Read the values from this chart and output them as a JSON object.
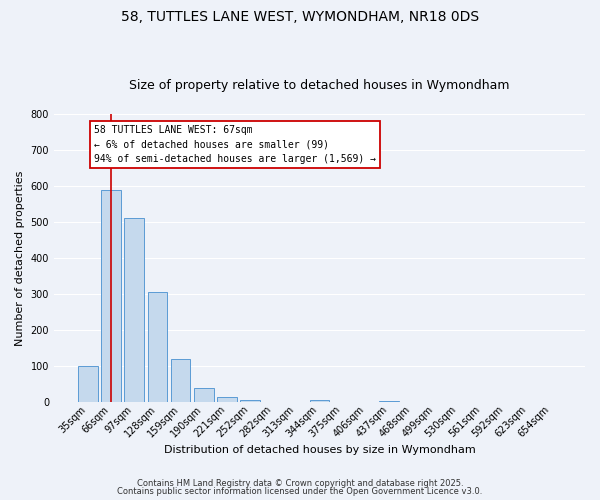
{
  "title": "58, TUTTLES LANE WEST, WYMONDHAM, NR18 0DS",
  "subtitle": "Size of property relative to detached houses in Wymondham",
  "xlabel": "Distribution of detached houses by size in Wymondham",
  "ylabel": "Number of detached properties",
  "bar_labels": [
    "35sqm",
    "66sqm",
    "97sqm",
    "128sqm",
    "159sqm",
    "190sqm",
    "221sqm",
    "252sqm",
    "282sqm",
    "313sqm",
    "344sqm",
    "375sqm",
    "406sqm",
    "437sqm",
    "468sqm",
    "499sqm",
    "530sqm",
    "561sqm",
    "592sqm",
    "623sqm",
    "654sqm"
  ],
  "bar_values": [
    100,
    590,
    510,
    305,
    120,
    38,
    14,
    5,
    0,
    0,
    5,
    0,
    0,
    3,
    0,
    0,
    0,
    0,
    0,
    0,
    0
  ],
  "bar_color": "#c5d9ed",
  "bar_edge_color": "#5b9bd5",
  "ylim": [
    0,
    800
  ],
  "yticks": [
    0,
    100,
    200,
    300,
    400,
    500,
    600,
    700,
    800
  ],
  "vline_x": 1,
  "vline_color": "#cc0000",
  "annotation_line1": "58 TUTTLES LANE WEST: 67sqm",
  "annotation_line2": "← 6% of detached houses are smaller (99)",
  "annotation_line3": "94% of semi-detached houses are larger (1,569) →",
  "footnote1": "Contains HM Land Registry data © Crown copyright and database right 2025.",
  "footnote2": "Contains public sector information licensed under the Open Government Licence v3.0.",
  "background_color": "#eef2f9",
  "grid_color": "#ffffff",
  "title_fontsize": 10,
  "subtitle_fontsize": 9,
  "axis_label_fontsize": 8,
  "tick_fontsize": 7,
  "footnote_fontsize": 6
}
